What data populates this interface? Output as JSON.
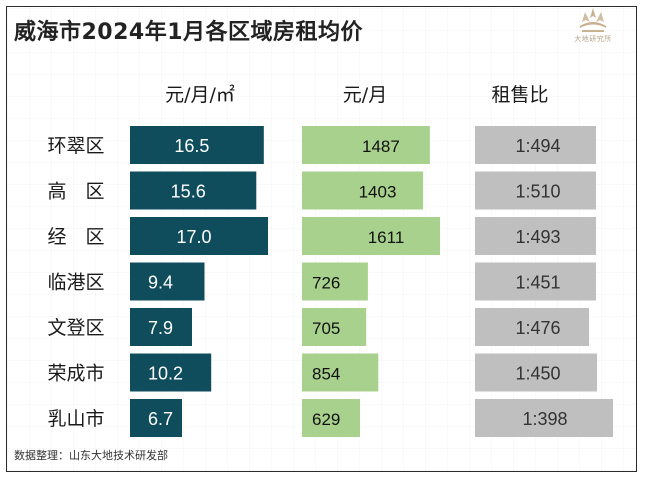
{
  "title": "威海市2024年1月各区域房租均价",
  "logo": {
    "text": "大地研究所"
  },
  "headers": {
    "price_per_sqm": "元/月/㎡",
    "rent_per_month": "元/月",
    "ratio": "租售比"
  },
  "source": "数据整理：山东大地技术研发部",
  "colors": {
    "dark_bar": "#0f4c5c",
    "green_bar": "#a9d18e",
    "gray_bar": "#bfbfbf",
    "logo": "#c9b28f"
  },
  "chart_data": {
    "type": "bar",
    "title": "威海市2024年1月各区域房租均价",
    "categories": [
      "环翠区",
      "高　区",
      "经　区",
      "临港区",
      "文登区",
      "荣成市",
      "乳山市"
    ],
    "series": [
      {
        "name": "元/月/㎡",
        "values": [
          16.5,
          15.6,
          17.0,
          9.4,
          7.9,
          10.2,
          6.7
        ],
        "labels": [
          "16.5",
          "15.6",
          "17.0",
          "9.4",
          "7.9",
          "10.2",
          "6.7"
        ]
      },
      {
        "name": "元/月",
        "values": [
          1487,
          1403,
          1611,
          726,
          705,
          854,
          629
        ],
        "labels": [
          "1487",
          "1403",
          "1611",
          "726",
          "705",
          "854",
          "629"
        ]
      },
      {
        "name": "租售比",
        "values": [
          494,
          510,
          493,
          451,
          476,
          450,
          398
        ],
        "labels": [
          "1:494",
          "1:510",
          "1:493",
          "1:451",
          "1:476",
          "1:450",
          "1:398"
        ]
      }
    ]
  }
}
